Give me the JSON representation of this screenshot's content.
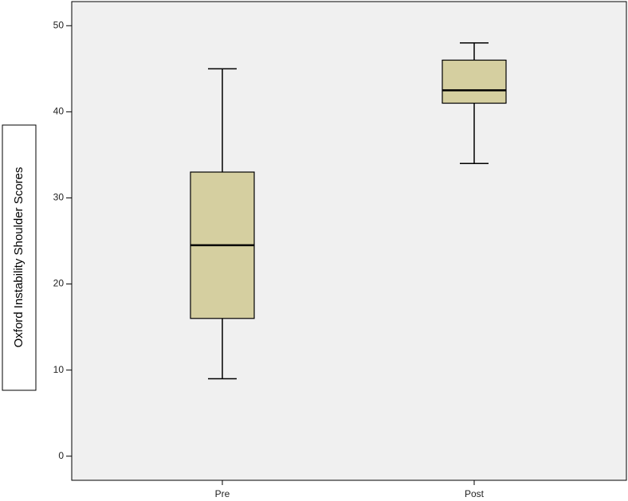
{
  "chart_data": {
    "type": "box",
    "y_label": "Oxford Instability Shoulder Scores",
    "categories": [
      "Pre",
      "Post"
    ],
    "boxes": [
      {
        "min": 9,
        "q1": 16,
        "median": 24.5,
        "q3": 33,
        "max": 45
      },
      {
        "min": 34,
        "q1": 41,
        "median": 42.5,
        "q3": 46,
        "max": 48
      }
    ],
    "color": "#d5cfa0",
    "ylim": [
      -2.8,
      52.8
    ],
    "yticks": [
      0,
      10,
      20,
      30,
      40,
      50
    ]
  }
}
